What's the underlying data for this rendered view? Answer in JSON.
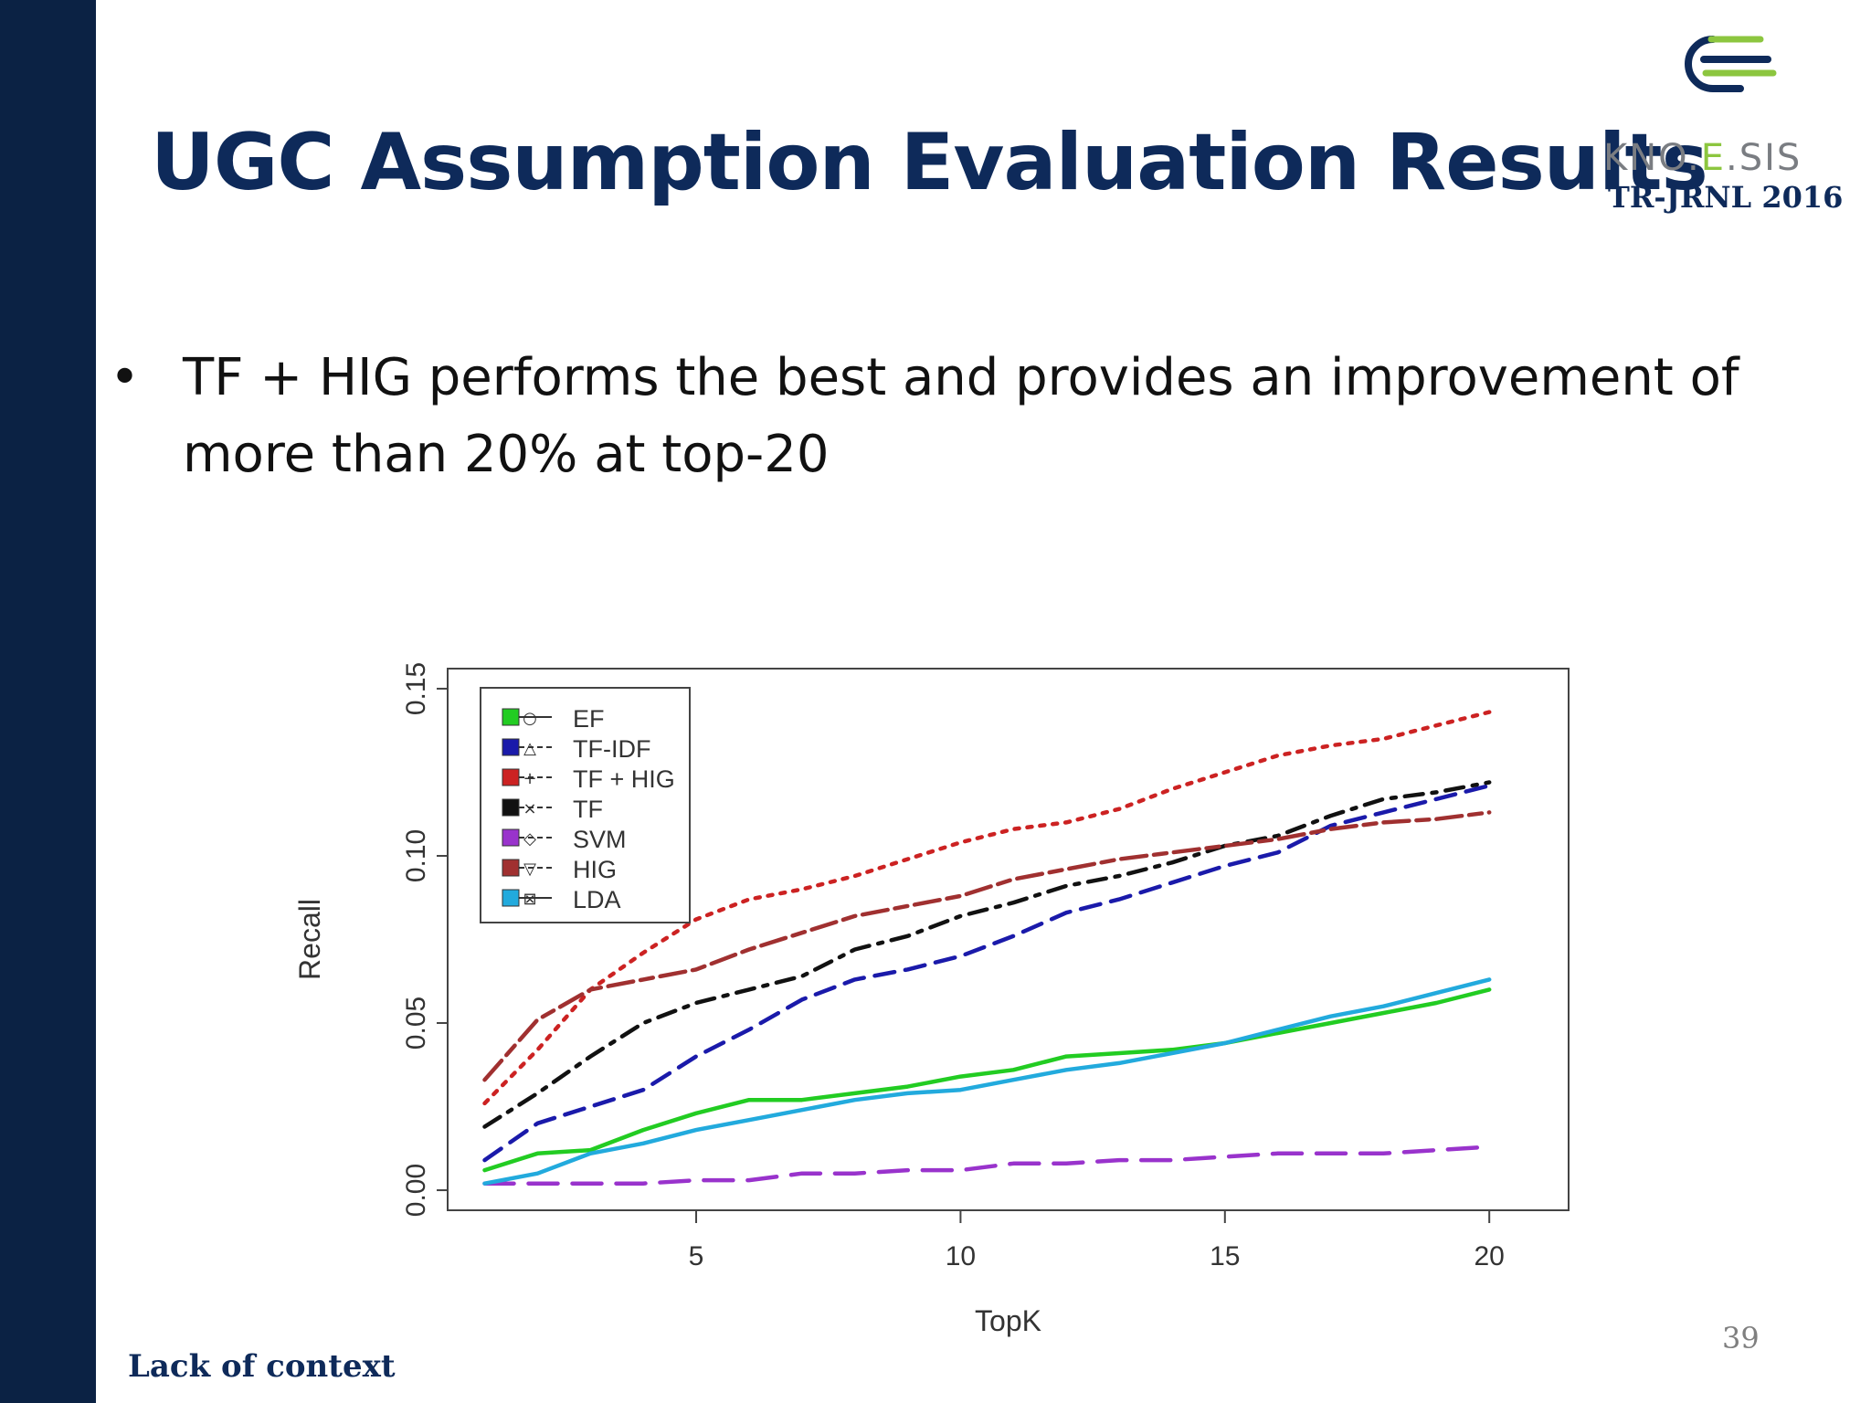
{
  "slide": {
    "title": "UGC Assumption Evaluation Results",
    "bullet": "TF + HIG performs the best and provides an improvement of more than 20% at top-20",
    "bullet_symbol": "•",
    "footer": "Lack of context",
    "page_number": "39"
  },
  "logo": {
    "text_part1": "KNO.",
    "text_part2": "E",
    "text_part3": ".SIS",
    "subtitle": "TR-JRNL 2016",
    "colors": {
      "navy": "#0e2a5a",
      "green": "#8cc63f",
      "gray": "#7a7d82"
    }
  },
  "chart_data": {
    "type": "line",
    "xlabel": "TopK",
    "ylabel": "Recall",
    "xlim": [
      0.3,
      21.5
    ],
    "ylim": [
      -0.006,
      0.156
    ],
    "xticks": [
      5,
      10,
      15,
      20
    ],
    "yticks": [
      0.0,
      0.05,
      0.1,
      0.15
    ],
    "ytick_labels": [
      "0.00",
      "0.05",
      "0.10",
      "0.15"
    ],
    "grid": false,
    "legend_position": "top-left",
    "x": [
      1,
      2,
      3,
      4,
      5,
      6,
      7,
      8,
      9,
      10,
      11,
      12,
      13,
      14,
      15,
      16,
      17,
      18,
      19,
      20
    ],
    "series": [
      {
        "name": "EF",
        "color": "#22cc22",
        "dash": "solid",
        "symbol": "○",
        "values": [
          0.006,
          0.011,
          0.012,
          0.018,
          0.023,
          0.027,
          0.027,
          0.029,
          0.031,
          0.034,
          0.036,
          0.04,
          0.041,
          0.042,
          0.044,
          0.047,
          0.05,
          0.053,
          0.056,
          0.06
        ]
      },
      {
        "name": "TF-IDF",
        "color": "#1a1aaa",
        "dash": "dashed",
        "symbol": "△",
        "values": [
          0.009,
          0.02,
          0.025,
          0.03,
          0.04,
          0.048,
          0.057,
          0.063,
          0.066,
          0.07,
          0.076,
          0.083,
          0.087,
          0.092,
          0.097,
          0.101,
          0.109,
          0.113,
          0.117,
          0.121
        ]
      },
      {
        "name": "TF + HIG",
        "color": "#cc2222",
        "dash": "dotted",
        "symbol": "+",
        "values": [
          0.026,
          0.042,
          0.06,
          0.071,
          0.081,
          0.087,
          0.09,
          0.094,
          0.099,
          0.104,
          0.108,
          0.11,
          0.114,
          0.12,
          0.125,
          0.13,
          0.133,
          0.135,
          0.139,
          0.143
        ]
      },
      {
        "name": "TF",
        "color": "#111111",
        "dash": "dashdot",
        "symbol": "×",
        "values": [
          0.019,
          0.029,
          0.04,
          0.05,
          0.056,
          0.06,
          0.064,
          0.072,
          0.076,
          0.082,
          0.086,
          0.091,
          0.094,
          0.098,
          0.103,
          0.106,
          0.112,
          0.117,
          0.119,
          0.122
        ]
      },
      {
        "name": "SVM",
        "color": "#9933cc",
        "dash": "longdash",
        "symbol": "◇",
        "values": [
          0.002,
          0.002,
          0.002,
          0.002,
          0.003,
          0.003,
          0.005,
          0.005,
          0.006,
          0.006,
          0.008,
          0.008,
          0.009,
          0.009,
          0.01,
          0.011,
          0.011,
          0.011,
          0.012,
          0.013
        ]
      },
      {
        "name": "HIG",
        "color": "#a03030",
        "dash": "twodash",
        "symbol": "▽",
        "values": [
          0.033,
          0.051,
          0.06,
          0.063,
          0.066,
          0.072,
          0.077,
          0.082,
          0.085,
          0.088,
          0.093,
          0.096,
          0.099,
          0.101,
          0.103,
          0.105,
          0.108,
          0.11,
          0.111,
          0.113
        ]
      },
      {
        "name": "LDA",
        "color": "#22aadd",
        "dash": "solid",
        "symbol": "⊠",
        "values": [
          0.002,
          0.005,
          0.011,
          0.014,
          0.018,
          0.021,
          0.024,
          0.027,
          0.029,
          0.03,
          0.033,
          0.036,
          0.038,
          0.041,
          0.044,
          0.048,
          0.052,
          0.055,
          0.059,
          0.063
        ]
      }
    ]
  }
}
